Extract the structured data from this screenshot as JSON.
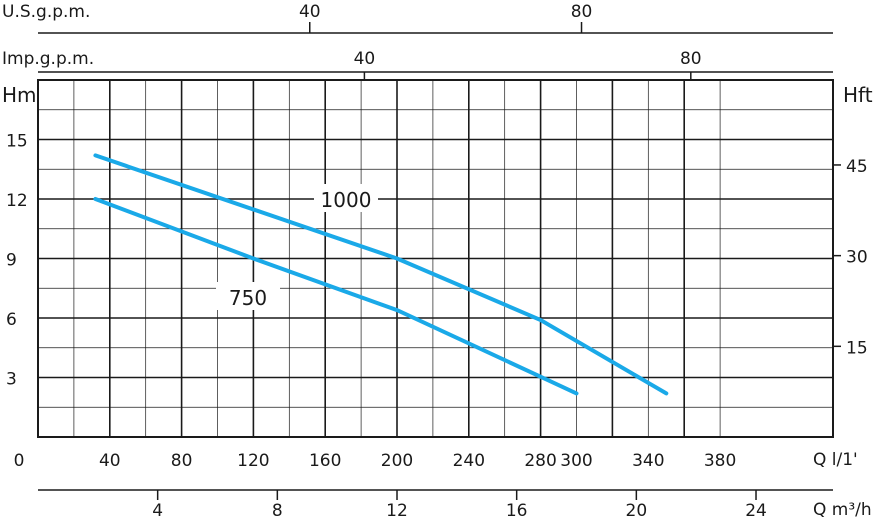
{
  "chart_data": {
    "type": "line",
    "title": "",
    "primary_x": {
      "label": "Q l/1'",
      "ticks": [
        "0",
        "40",
        "80",
        "120",
        "160",
        "200",
        "240",
        "280",
        "300",
        "340",
        "380"
      ],
      "range": [
        0,
        400
      ]
    },
    "secondary_x_top_1": {
      "label": "U.S.g.p.m.",
      "ticks": [
        "40",
        "80"
      ]
    },
    "secondary_x_top_2": {
      "label": "Imp.g.p.m.",
      "ticks": [
        "40",
        "80"
      ]
    },
    "secondary_x_bottom": {
      "label": "Q m³/h",
      "ticks": [
        "4",
        "8",
        "12",
        "16",
        "20",
        "24"
      ]
    },
    "y_left": {
      "label": "Hm",
      "ticks": [
        "3",
        "6",
        "9",
        "12",
        "15"
      ],
      "range": [
        0,
        18
      ]
    },
    "y_right": {
      "label": "Hft",
      "ticks": [
        "15",
        "30",
        "45"
      ]
    },
    "grid": true,
    "series": [
      {
        "name": "1000",
        "color": "#1aa9e8",
        "points": [
          [
            32,
            14.2
          ],
          [
            200,
            9.0
          ],
          [
            280,
            5.9
          ],
          [
            350,
            2.2
          ]
        ]
      },
      {
        "name": "750",
        "color": "#1aa9e8",
        "points": [
          [
            32,
            12.0
          ],
          [
            120,
            9.0
          ],
          [
            200,
            6.4
          ],
          [
            300,
            2.2
          ]
        ]
      }
    ]
  }
}
